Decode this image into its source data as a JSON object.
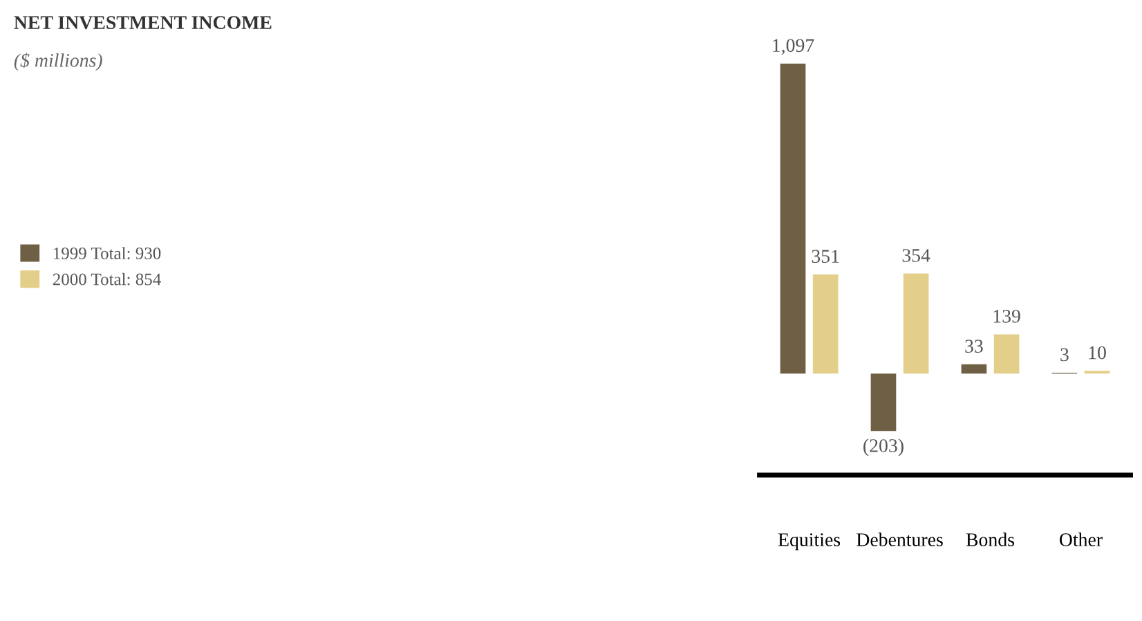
{
  "chart_data": {
    "type": "bar",
    "title": "NET INVESTMENT INCOME",
    "subtitle": "($ millions)",
    "categories": [
      "Equities",
      "Debentures",
      "Bonds",
      "Other"
    ],
    "series": [
      {
        "name": "1999 Total: 930",
        "color": "#6e5f45",
        "values": [
          1097,
          -203,
          33,
          3
        ],
        "value_labels": [
          "1,097",
          "(203)",
          "33",
          "3"
        ]
      },
      {
        "name": "2000 Total: 854",
        "color": "#e3cf8a",
        "values": [
          351,
          354,
          139,
          10
        ],
        "value_labels": [
          "351",
          "354",
          "139",
          "10"
        ]
      }
    ],
    "legend": "left",
    "grid": false
  }
}
